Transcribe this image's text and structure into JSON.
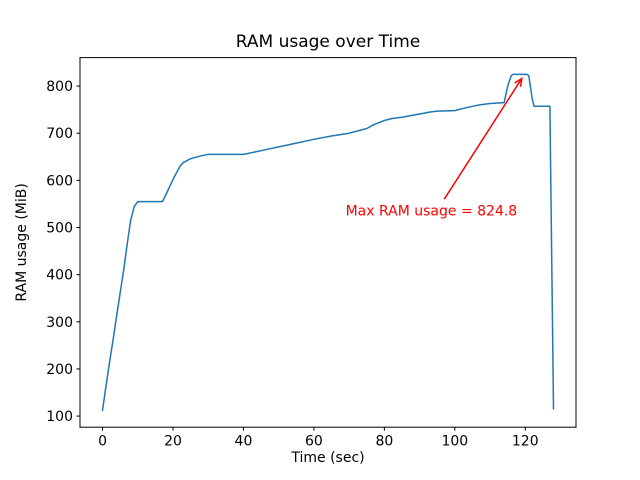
{
  "chart_data": {
    "type": "line",
    "title": "RAM usage over Time",
    "xlabel": "Time (sec)",
    "ylabel": "RAM usage (MiB)",
    "xlim": [
      -6.4,
      134.4
    ],
    "ylim": [
      76.4,
      860.4
    ],
    "xticks": [
      0,
      20,
      40,
      60,
      80,
      100,
      120
    ],
    "yticks": [
      100,
      200,
      300,
      400,
      500,
      600,
      700,
      800
    ],
    "grid": false,
    "legend": null,
    "background_color": "#ffffff",
    "frame_color": "#000000",
    "series": [
      {
        "name": "RAM usage",
        "color": "#1f77b4",
        "points": [
          [
            0,
            112
          ],
          [
            1,
            165
          ],
          [
            2,
            215
          ],
          [
            3,
            262
          ],
          [
            4,
            312
          ],
          [
            5,
            362
          ],
          [
            6,
            410
          ],
          [
            7,
            465
          ],
          [
            8,
            516
          ],
          [
            9,
            545
          ],
          [
            10,
            555
          ],
          [
            17,
            555
          ],
          [
            18,
            570
          ],
          [
            20,
            602
          ],
          [
            22,
            630
          ],
          [
            23,
            638
          ],
          [
            25,
            646
          ],
          [
            28,
            652
          ],
          [
            30,
            655
          ],
          [
            40,
            655
          ],
          [
            45,
            663
          ],
          [
            50,
            671
          ],
          [
            55,
            679
          ],
          [
            60,
            687
          ],
          [
            65,
            694
          ],
          [
            70,
            700
          ],
          [
            73,
            706
          ],
          [
            75,
            710
          ],
          [
            77,
            718
          ],
          [
            80,
            727
          ],
          [
            82,
            731
          ],
          [
            85,
            734
          ],
          [
            88,
            738
          ],
          [
            91,
            742
          ],
          [
            93,
            745
          ],
          [
            95,
            747
          ],
          [
            100,
            748
          ],
          [
            102,
            752
          ],
          [
            105,
            757
          ],
          [
            107,
            760
          ],
          [
            110,
            763
          ],
          [
            114,
            765
          ],
          [
            115,
            800
          ],
          [
            116,
            822
          ],
          [
            116.5,
            824.8
          ],
          [
            120.5,
            824.8
          ],
          [
            121,
            822
          ],
          [
            122,
            772
          ],
          [
            122.5,
            757
          ],
          [
            127,
            757
          ],
          [
            128,
            115
          ]
        ]
      }
    ],
    "max_value": 824.8,
    "annotation": {
      "text": "Max RAM usage = 824.8",
      "color": "#ff0000",
      "text_at": [
        69,
        535
      ],
      "arrow_tail": [
        97,
        560
      ],
      "arrow_tip": [
        119,
        816
      ],
      "points_to": [
        118,
        824.8
      ]
    }
  }
}
